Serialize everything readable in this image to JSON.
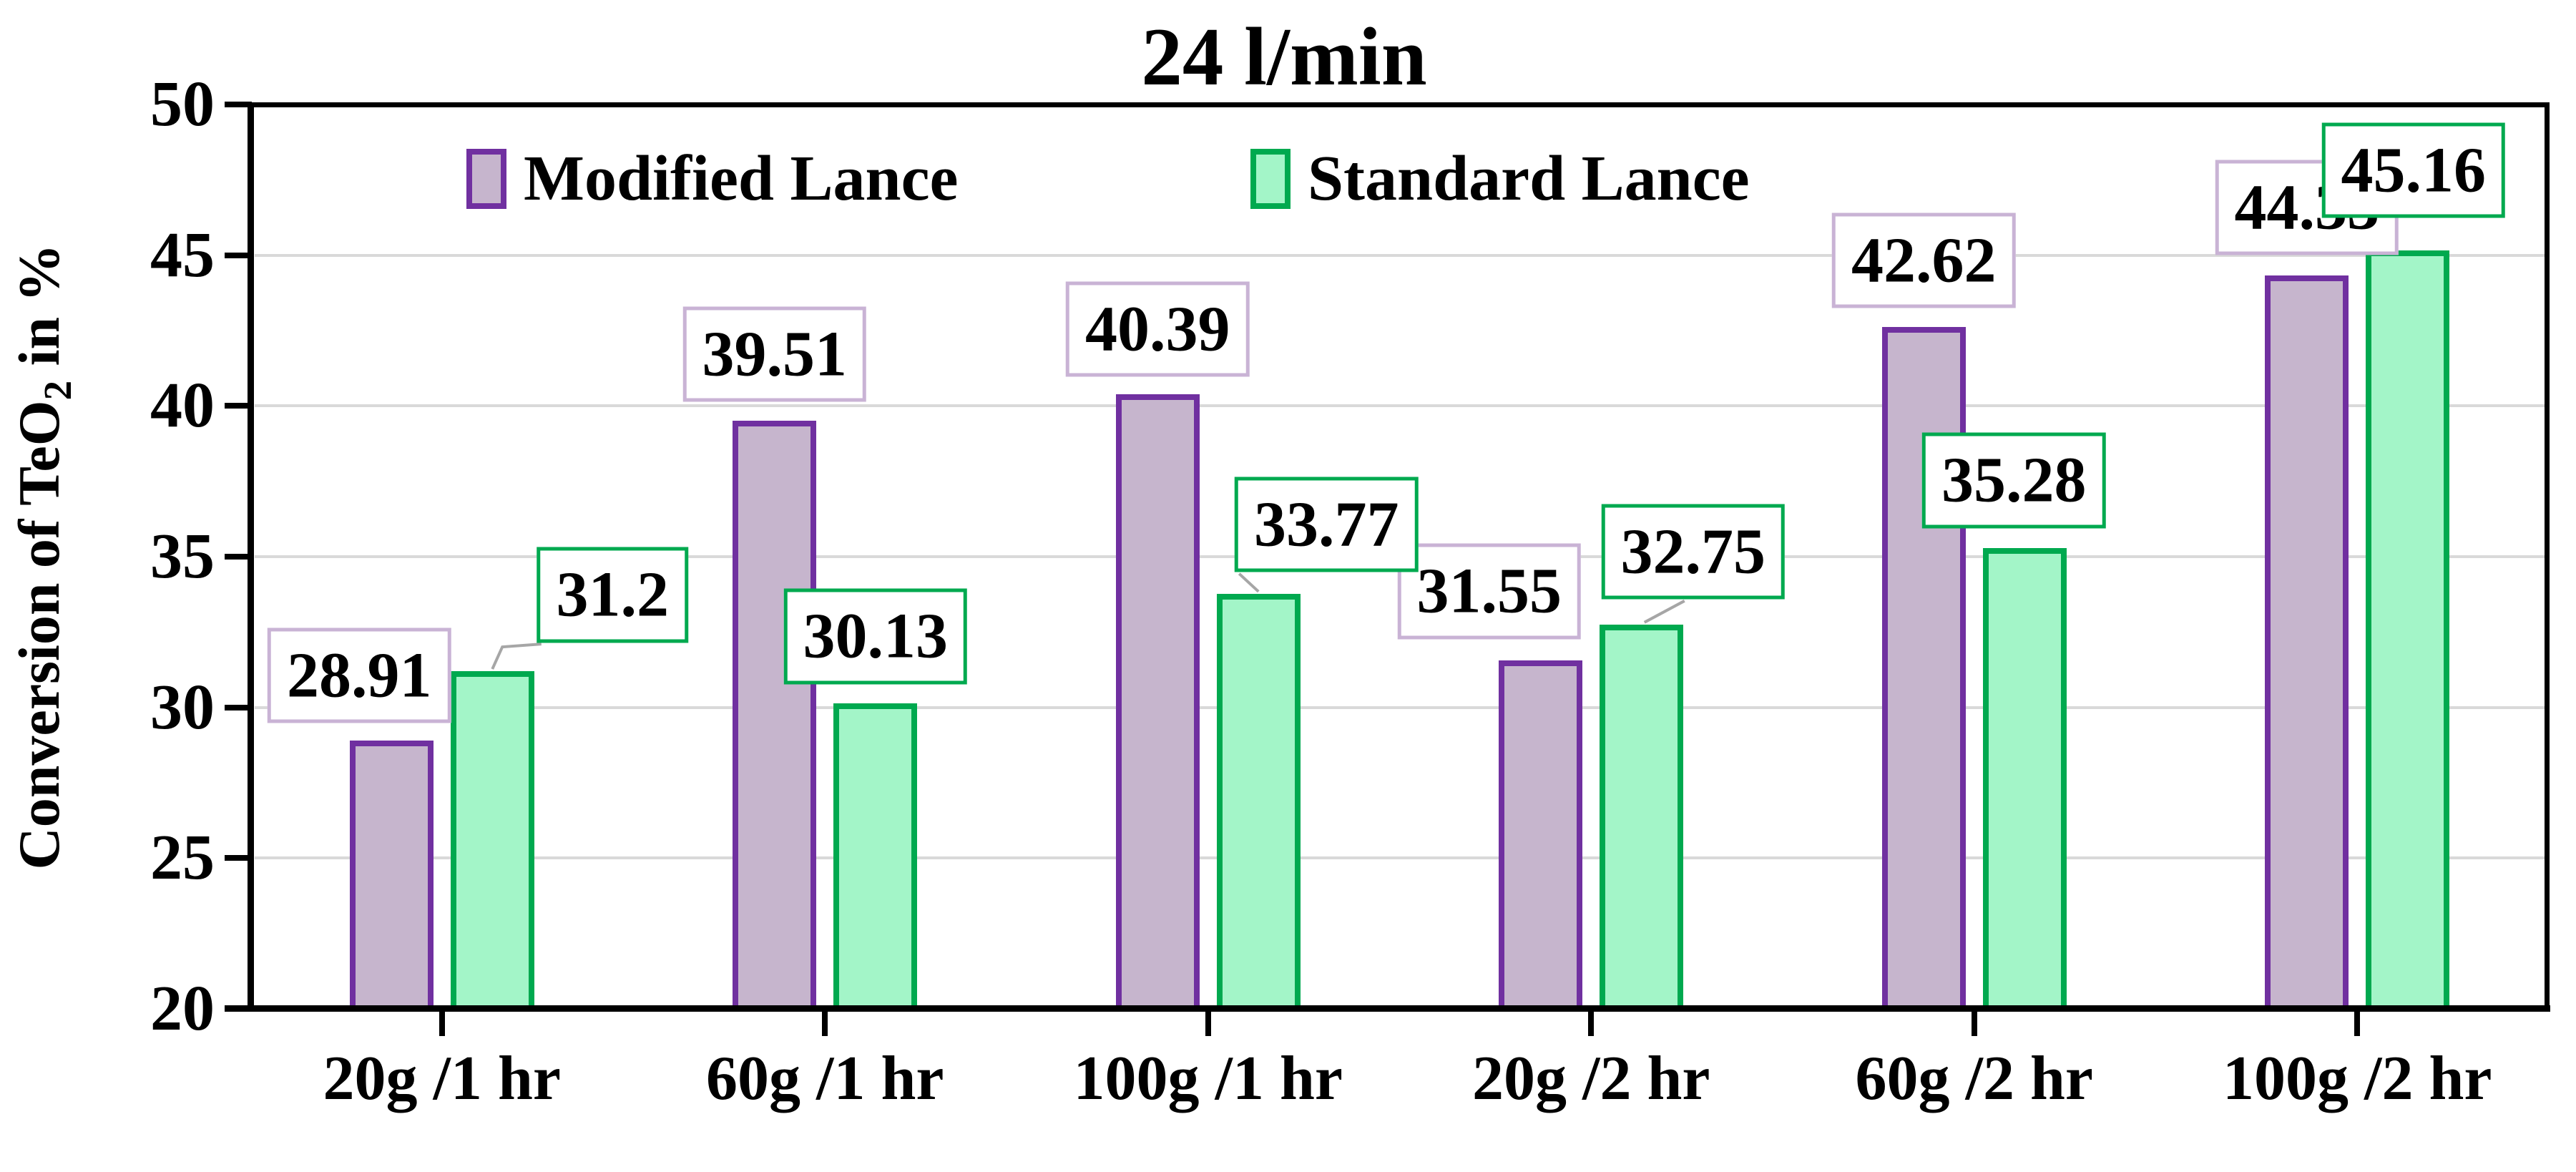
{
  "title": "24 l/min",
  "y_axis": {
    "title_main": "Conversion of TeO",
    "title_sub": "2",
    "title_tail": " in %",
    "ticks": [
      "20",
      "25",
      "30",
      "35",
      "40",
      "45",
      "50"
    ]
  },
  "x_axis": {
    "categories": [
      "20g /1 hr",
      "60g /1 hr",
      "100g /1 hr",
      "20g /2 hr",
      "60g /2 hr",
      "100g /2 hr"
    ]
  },
  "chart_data": {
    "type": "bar",
    "title": "24 l/min",
    "categories": [
      "20g /1 hr",
      "60g /1 hr",
      "100g /1 hr",
      "20g /2 hr",
      "60g /2 hr",
      "100g /2 hr"
    ],
    "series": [
      {
        "name": "Modified Lance",
        "values": [
          28.91,
          39.51,
          40.39,
          31.55,
          42.62,
          44.33
        ],
        "labels": [
          "28.91",
          "39.51",
          "40.39",
          "31.55",
          "42.62",
          "44.33"
        ],
        "fill": "#C6B5CD",
        "border": "#7030A0",
        "label_box_border": "#C9B3D5"
      },
      {
        "name": "Standard Lance",
        "values": [
          31.2,
          30.13,
          33.77,
          32.75,
          35.28,
          45.16
        ],
        "labels": [
          "31.2",
          "30.13",
          "33.77",
          "32.75",
          "35.28",
          "45.16"
        ],
        "fill": "#A3F5C8",
        "border": "#00A94F",
        "label_box_border": "#00A94F"
      }
    ],
    "xlabel": "",
    "ylabel": "Conversion of TeO2 in %",
    "ylim": [
      20,
      50
    ],
    "ytick_step": 5,
    "grid": true,
    "gridline_color": "#D9D9D9",
    "axis_color": "#000000",
    "leader_line_color": "#A6A6A6",
    "legend_position": "top-inside",
    "data_labels": true
  }
}
